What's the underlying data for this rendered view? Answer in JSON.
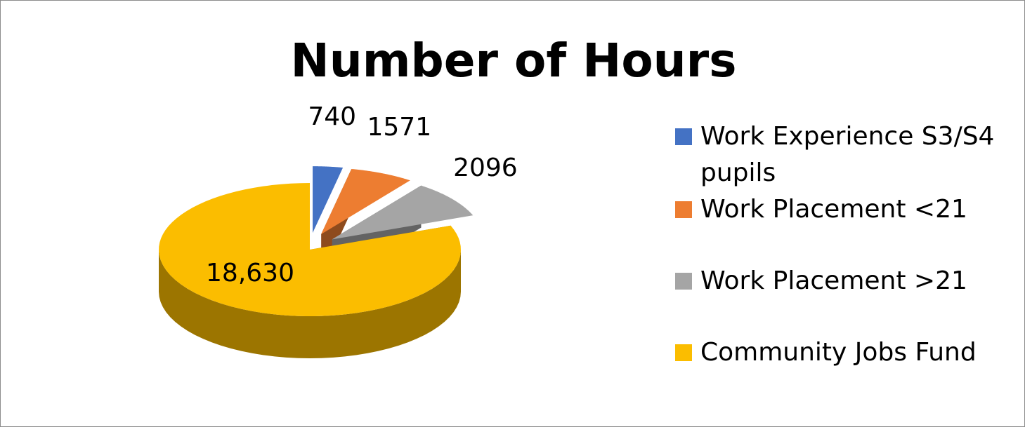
{
  "chart_data": {
    "type": "pie",
    "title": "Number of Hours",
    "categories": [
      "Work Experience S3/S4 pupils",
      "Work Placement <21",
      "Work Placement >21",
      "Community Jobs Fund"
    ],
    "values": [
      740,
      1571,
      2096,
      18630
    ],
    "value_labels": [
      "740",
      "1571",
      "2096",
      "18,630"
    ],
    "colors": [
      "#4472c4",
      "#ed7d31",
      "#a5a5a5",
      "#fbbd00"
    ],
    "legend": "right"
  }
}
